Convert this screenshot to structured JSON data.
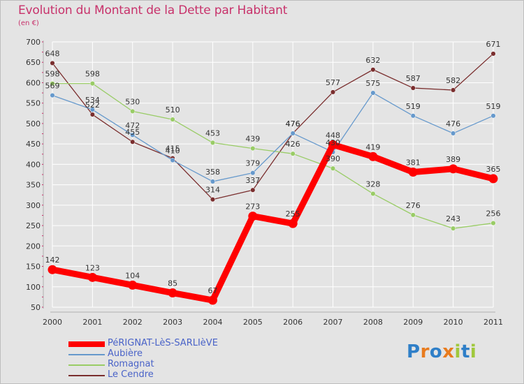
{
  "header": {
    "title": "Evolution du Montant de la Dette par Habitant",
    "subtitle": "(en €)"
  },
  "logo": {
    "text": "Proxiti"
  },
  "colors": {
    "background": "#e4e4e4",
    "grid": "#ffffff",
    "title": "#c8326b",
    "legend_text": "#4a63c8"
  },
  "chart_data": {
    "type": "line",
    "title": "Evolution du Montant de la Dette par Habitant",
    "subtitle": "(en €)",
    "xlabel": "",
    "ylabel": "",
    "categories": [
      "2000",
      "2001",
      "2002",
      "2003",
      "2004",
      "2005",
      "2006",
      "2007",
      "2008",
      "2009",
      "2010",
      "2011"
    ],
    "ylim": [
      50,
      700
    ],
    "yticks": [
      50,
      100,
      150,
      200,
      250,
      300,
      350,
      400,
      450,
      500,
      550,
      600,
      650,
      700
    ],
    "grid": true,
    "legend_position": "bottom-left",
    "series": [
      {
        "name": "PéRIGNAT-LèS-SARLIèVE",
        "color": "#ff0000",
        "bold": true,
        "values": [
          142,
          123,
          104,
          85,
          67,
          273,
          255,
          448,
          419,
          381,
          389,
          365
        ]
      },
      {
        "name": "Aubière",
        "color": "#6699cc",
        "values": [
          569,
          534,
          472,
          410,
          358,
          379,
          476,
          430,
          575,
          519,
          476,
          519
        ]
      },
      {
        "name": "Romagnat",
        "color": "#99cc66",
        "values": [
          598,
          598,
          530,
          510,
          453,
          439,
          426,
          390,
          328,
          276,
          243,
          256
        ]
      },
      {
        "name": "Le Cendre",
        "color": "#7a2e2e",
        "values": [
          648,
          522,
          455,
          415,
          314,
          337,
          476,
          577,
          632,
          587,
          582,
          671
        ]
      }
    ]
  }
}
